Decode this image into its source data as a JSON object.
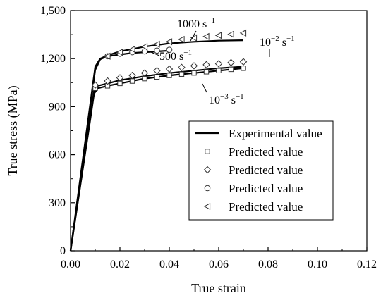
{
  "chart_data": {
    "type": "line",
    "xlabel": "True strain",
    "ylabel": "True stress (MPa)",
    "xlim": [
      0.0,
      0.12
    ],
    "ylim": [
      0,
      1500
    ],
    "xticks": [
      0.0,
      0.02,
      0.04,
      0.06,
      0.08,
      0.1,
      0.12
    ],
    "xtick_labels": [
      "0.00",
      "0.02",
      "0.04",
      "0.06",
      "0.08",
      "0.10",
      "0.12"
    ],
    "yticks": [
      0,
      300,
      600,
      900,
      1200,
      1500
    ],
    "ytick_labels": [
      "0",
      "300",
      "600",
      "900",
      "1,200",
      "1,500"
    ],
    "legend_position": "bottom-right",
    "legend": [
      {
        "label": "Experimental value",
        "marker": "line"
      },
      {
        "label": "Predicted value",
        "marker": "square"
      },
      {
        "label": "Predicted value",
        "marker": "diamond"
      },
      {
        "label": "Predicted value",
        "marker": "circle"
      },
      {
        "label": "Predicted value",
        "marker": "triangle-left"
      }
    ],
    "annotations": [
      {
        "base": "1000 s",
        "sup": "−1"
      },
      {
        "base": "500 s",
        "sup": "−1"
      },
      {
        "base": "10",
        "sup": "−2",
        "unit": "s",
        "unit_sup": "−1"
      },
      {
        "base": "10",
        "sup": "−3",
        "unit": "s",
        "unit_sup": "−1"
      }
    ],
    "experimental_curves": [
      {
        "x": [
          0,
          0.004,
          0.008,
          0.0095,
          0.011,
          0.015,
          0.02,
          0.03,
          0.04,
          0.05,
          0.06,
          0.07
        ],
        "y": [
          0,
          410,
          820,
          980,
          1015,
          1030,
          1045,
          1075,
          1095,
          1110,
          1125,
          1140
        ]
      },
      {
        "x": [
          0,
          0.004,
          0.008,
          0.0095,
          0.011,
          0.015,
          0.02,
          0.03,
          0.04,
          0.05,
          0.06,
          0.07
        ],
        "y": [
          0,
          420,
          840,
          1000,
          1030,
          1045,
          1065,
          1090,
          1110,
          1125,
          1140,
          1150
        ]
      },
      {
        "x": [
          0,
          0.004,
          0.008,
          0.01,
          0.012,
          0.015,
          0.02,
          0.025,
          0.03,
          0.035,
          0.04
        ],
        "y": [
          0,
          450,
          900,
          1130,
          1195,
          1215,
          1225,
          1235,
          1240,
          1245,
          1250
        ]
      },
      {
        "x": [
          0,
          0.004,
          0.008,
          0.01,
          0.012,
          0.015,
          0.02,
          0.03,
          0.04,
          0.05,
          0.06,
          0.07
        ],
        "y": [
          0,
          460,
          920,
          1150,
          1200,
          1220,
          1245,
          1275,
          1295,
          1305,
          1312,
          1315
        ]
      }
    ],
    "series": [
      {
        "marker": "square",
        "x": [
          0.01,
          0.015,
          0.02,
          0.025,
          0.03,
          0.035,
          0.04,
          0.045,
          0.05,
          0.055,
          0.06,
          0.065,
          0.07
        ],
        "y": [
          1015,
          1030,
          1045,
          1060,
          1075,
          1085,
          1095,
          1103,
          1110,
          1118,
          1125,
          1133,
          1140
        ]
      },
      {
        "marker": "diamond",
        "x": [
          0.01,
          0.015,
          0.02,
          0.025,
          0.03,
          0.035,
          0.04,
          0.045,
          0.05,
          0.055,
          0.06,
          0.065,
          0.07
        ],
        "y": [
          1035,
          1060,
          1080,
          1095,
          1110,
          1125,
          1135,
          1145,
          1155,
          1162,
          1168,
          1175,
          1180
        ]
      },
      {
        "marker": "circle",
        "x": [
          0.015,
          0.02,
          0.025,
          0.03,
          0.035,
          0.04
        ],
        "y": [
          1215,
          1230,
          1240,
          1245,
          1250,
          1255
        ]
      },
      {
        "marker": "triangle-left",
        "x": [
          0.015,
          0.02,
          0.025,
          0.03,
          0.035,
          0.04,
          0.045,
          0.05,
          0.055,
          0.06,
          0.065,
          0.07
        ],
        "y": [
          1215,
          1240,
          1258,
          1275,
          1290,
          1305,
          1320,
          1330,
          1338,
          1345,
          1352,
          1360
        ]
      }
    ]
  }
}
